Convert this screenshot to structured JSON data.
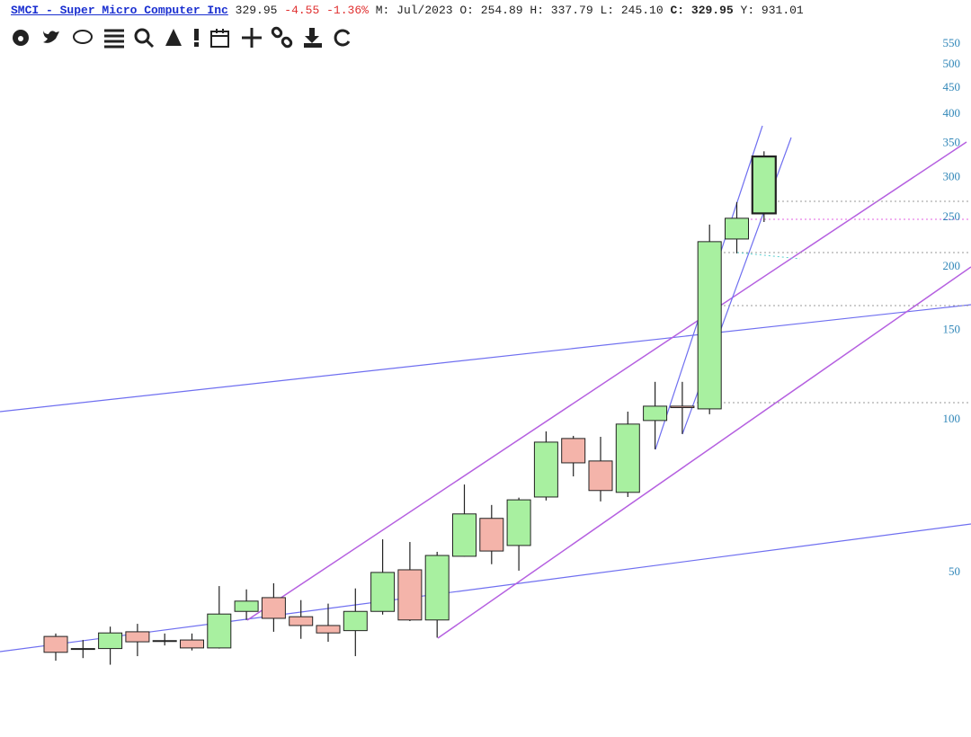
{
  "chart_data": {
    "type": "candlestick",
    "header": [
      "SMCI - Super Micro Computer Inc",
      "329.95",
      "-4.55",
      "-1.36%",
      "M: Jul/2023",
      "O: 254.89",
      "H: 337.79",
      "L: 245.10",
      "C:",
      "329.95",
      "Y: 931.01"
    ],
    "open": [
      37.4,
      35.4,
      35.4,
      38.2,
      36.7,
      36.8,
      35.5,
      41.9,
      44.6,
      40.9,
      39.3,
      38.4,
      41.9,
      50.6,
      40.3,
      53.8,
      63.9,
      56.5,
      70.4,
      91.8,
      82.9,
      71.9,
      99.6,
      106.3,
      105.0,
      226.9,
      254.89
    ],
    "high": [
      37.9,
      36.8,
      39.1,
      39.6,
      37.9,
      37.9,
      47.0,
      46.3,
      47.6,
      44.1,
      43.4,
      46.5,
      58.1,
      57.4,
      54.9,
      74.5,
      67.9,
      70.2,
      94.8,
      92.9,
      92.5,
      103.7,
      118.7,
      118.7,
      242.2,
      268.3,
      337.79
    ],
    "low": [
      33.5,
      33.9,
      32.9,
      34.2,
      35.9,
      35.1,
      35.4,
      40.3,
      38.2,
      37.0,
      36.5,
      34.2,
      41.3,
      40.1,
      37.2,
      53.7,
      51.9,
      50.4,
      69.3,
      77.3,
      69.0,
      70.4,
      87.4,
      93.7,
      102.5,
      212.6,
      245.1
    ],
    "close": [
      34.8,
      35.4,
      38.0,
      36.5,
      36.7,
      35.5,
      41.4,
      43.9,
      40.6,
      39.3,
      38.0,
      41.9,
      50.0,
      40.3,
      54.0,
      65.2,
      55.1,
      69.5,
      90.3,
      82.2,
      72.5,
      98.0,
      106.3,
      105.6,
      224.2,
      249.3,
      329.95
    ],
    "up_color": "#a8f0a0",
    "down_color": "#f4b4aa",
    "log_y": true,
    "ylim": [
      23.7,
      671
    ],
    "yticks": [
      50,
      100,
      150,
      200,
      250,
      300,
      350,
      400,
      450,
      500,
      550
    ]
  }
}
